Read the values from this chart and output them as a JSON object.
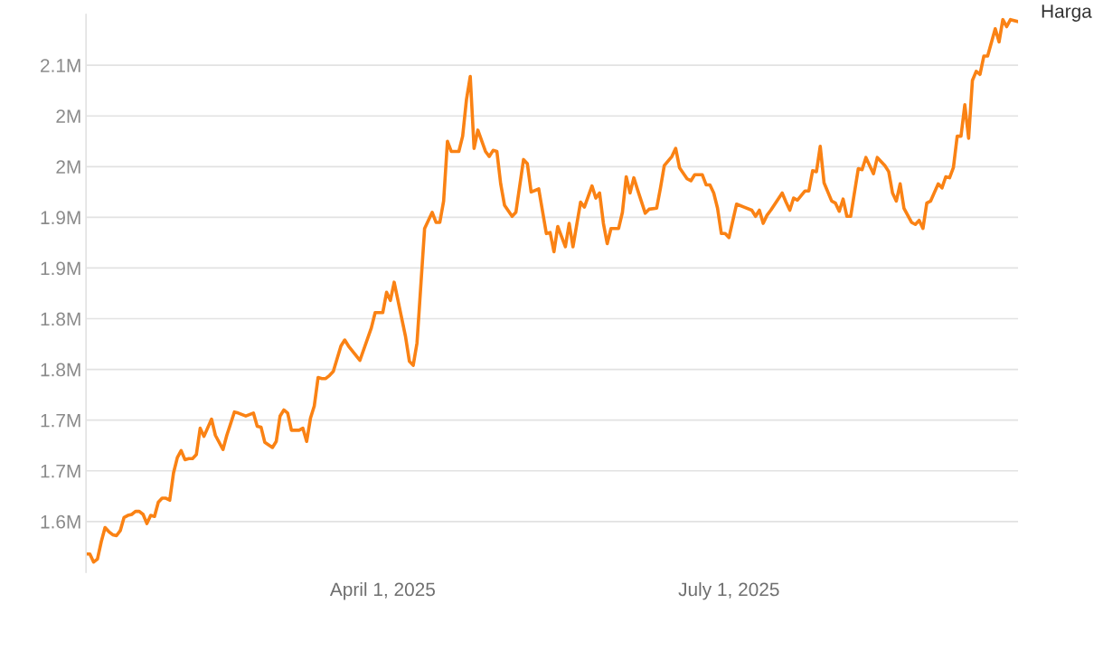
{
  "chart_data": {
    "type": "line",
    "x": [
      "2025-01-13",
      "2025-01-14",
      "2025-01-15",
      "2025-01-16",
      "2025-01-17",
      "2025-01-18",
      "2025-01-19",
      "2025-01-20",
      "2025-01-21",
      "2025-01-22",
      "2025-01-23",
      "2025-01-24",
      "2025-01-25",
      "2025-01-26",
      "2025-01-27",
      "2025-01-28",
      "2025-01-29",
      "2025-01-30",
      "2025-01-31",
      "2025-02-01",
      "2025-02-02",
      "2025-02-03",
      "2025-02-04",
      "2025-02-05",
      "2025-02-06",
      "2025-02-07",
      "2025-02-08",
      "2025-02-09",
      "2025-02-10",
      "2025-02-11",
      "2025-02-12",
      "2025-02-13",
      "2025-02-15",
      "2025-02-16",
      "2025-02-18",
      "2025-02-19",
      "2025-02-21",
      "2025-02-22",
      "2025-02-24",
      "2025-02-26",
      "2025-02-27",
      "2025-02-28",
      "2025-03-01",
      "2025-03-03",
      "2025-03-04",
      "2025-03-05",
      "2025-03-06",
      "2025-03-07",
      "2025-03-08",
      "2025-03-10",
      "2025-03-11",
      "2025-03-12",
      "2025-03-13",
      "2025-03-14",
      "2025-03-15",
      "2025-03-16",
      "2025-03-17",
      "2025-03-18",
      "2025-03-19",
      "2025-03-21",
      "2025-03-22",
      "2025-03-23",
      "2025-03-26",
      "2025-03-29",
      "2025-03-30",
      "2025-04-01",
      "2025-04-02",
      "2025-04-03",
      "2025-04-04",
      "2025-04-07",
      "2025-04-08",
      "2025-04-09",
      "2025-04-10",
      "2025-04-12",
      "2025-04-14",
      "2025-04-15",
      "2025-04-16",
      "2025-04-17",
      "2025-04-18",
      "2025-04-19",
      "2025-04-21",
      "2025-04-22",
      "2025-04-23",
      "2025-04-24",
      "2025-04-25",
      "2025-04-26",
      "2025-04-28",
      "2025-04-29",
      "2025-04-30",
      "2025-05-01",
      "2025-05-02",
      "2025-05-03",
      "2025-05-05",
      "2025-05-06",
      "2025-05-08",
      "2025-05-09",
      "2025-05-10",
      "2025-05-12",
      "2025-05-14",
      "2025-05-15",
      "2025-05-16",
      "2025-05-17",
      "2025-05-19",
      "2025-05-20",
      "2025-05-21",
      "2025-05-23",
      "2025-05-24",
      "2025-05-26",
      "2025-05-27",
      "2025-05-28",
      "2025-05-29",
      "2025-05-30",
      "2025-05-31",
      "2025-06-02",
      "2025-06-03",
      "2025-06-04",
      "2025-06-05",
      "2025-06-06",
      "2025-06-07",
      "2025-06-09",
      "2025-06-10",
      "2025-06-12",
      "2025-06-13",
      "2025-06-14",
      "2025-06-16",
      "2025-06-17",
      "2025-06-18",
      "2025-06-20",
      "2025-06-21",
      "2025-06-22",
      "2025-06-24",
      "2025-06-25",
      "2025-06-26",
      "2025-06-27",
      "2025-06-28",
      "2025-06-29",
      "2025-06-30",
      "2025-07-01",
      "2025-07-03",
      "2025-07-05",
      "2025-07-07",
      "2025-07-08",
      "2025-07-09",
      "2025-07-10",
      "2025-07-11",
      "2025-07-12",
      "2025-07-15",
      "2025-07-16",
      "2025-07-17",
      "2025-07-18",
      "2025-07-19",
      "2025-07-21",
      "2025-07-22",
      "2025-07-23",
      "2025-07-24",
      "2025-07-25",
      "2025-07-26",
      "2025-07-28",
      "2025-07-29",
      "2025-07-30",
      "2025-07-31",
      "2025-08-01",
      "2025-08-02",
      "2025-08-04",
      "2025-08-05",
      "2025-08-06",
      "2025-08-08",
      "2025-08-09",
      "2025-08-11",
      "2025-08-12",
      "2025-08-13",
      "2025-08-14",
      "2025-08-15",
      "2025-08-16",
      "2025-08-18",
      "2025-08-19",
      "2025-08-20",
      "2025-08-21",
      "2025-08-22",
      "2025-08-23",
      "2025-08-25",
      "2025-08-26",
      "2025-08-27",
      "2025-08-28",
      "2025-08-29",
      "2025-08-30",
      "2025-08-31",
      "2025-09-01",
      "2025-09-02",
      "2025-09-03",
      "2025-09-04",
      "2025-09-05",
      "2025-09-06",
      "2025-09-07",
      "2025-09-09",
      "2025-09-10",
      "2025-09-11",
      "2025-09-12",
      "2025-09-13",
      "2025-09-15"
    ],
    "series": [
      {
        "name": "Harga",
        "color": "#fa8214",
        "values": [
          1568000,
          1568000,
          1560000,
          1563000,
          1580000,
          1594000,
          1590000,
          1587000,
          1586000,
          1591000,
          1604000,
          1606000,
          1607000,
          1610000,
          1610000,
          1607000,
          1598000,
          1606000,
          1605000,
          1619000,
          1623000,
          1623000,
          1621000,
          1648000,
          1663000,
          1670000,
          1661000,
          1662000,
          1662000,
          1666000,
          1692000,
          1684000,
          1701000,
          1685000,
          1671000,
          1685000,
          1708000,
          1707000,
          1704000,
          1707000,
          1694000,
          1693000,
          1678000,
          1673000,
          1679000,
          1704000,
          1710000,
          1707000,
          1690000,
          1690000,
          1692000,
          1679000,
          1702000,
          1714000,
          1742000,
          1741000,
          1741000,
          1744000,
          1748000,
          1773000,
          1779000,
          1773000,
          1759000,
          1791000,
          1806000,
          1806000,
          1826000,
          1818000,
          1836000,
          1782000,
          1758000,
          1754000,
          1776000,
          1889000,
          1905000,
          1895000,
          1895000,
          1916000,
          1975000,
          1965000,
          1965000,
          1980000,
          2016000,
          2039000,
          1968000,
          1986000,
          1965000,
          1960000,
          1966000,
          1965000,
          1933000,
          1912000,
          1901000,
          1905000,
          1957000,
          1953000,
          1925000,
          1928000,
          1884000,
          1885000,
          1866000,
          1891000,
          1871000,
          1894000,
          1871000,
          1915000,
          1910000,
          1931000,
          1919000,
          1924000,
          1894000,
          1874000,
          1889000,
          1889000,
          1905000,
          1940000,
          1924000,
          1939000,
          1927000,
          1904000,
          1908000,
          1909000,
          1929000,
          1951000,
          1960000,
          1968000,
          1949000,
          1938000,
          1936000,
          1942000,
          1942000,
          1932000,
          1932000,
          1924000,
          1909000,
          1884000,
          1884000,
          1880000,
          1913000,
          1910000,
          1907000,
          1901000,
          1907000,
          1894000,
          1902000,
          1907000,
          1924000,
          1915000,
          1907000,
          1919000,
          1917000,
          1926000,
          1926000,
          1946000,
          1945000,
          1970000,
          1934000,
          1916000,
          1914000,
          1906000,
          1918000,
          1901000,
          1901000,
          1948000,
          1947000,
          1959000,
          1943000,
          1959000,
          1951000,
          1945000,
          1924000,
          1916000,
          1933000,
          1909000,
          1895000,
          1893000,
          1897000,
          1889000,
          1914000,
          1916000,
          1933000,
          1929000,
          1940000,
          1939000,
          1949000,
          1980000,
          1980000,
          2011000,
          1978000,
          2035000,
          2044000,
          2041000,
          2059000,
          2059000,
          2086000,
          2073000,
          2095000,
          2088000,
          2095000,
          2093000
        ]
      }
    ],
    "xlim": [
      "2025-01-13",
      "2025-09-15"
    ],
    "xticks": [
      {
        "value": "2025-04-01",
        "label": "April 1, 2025"
      },
      {
        "value": "2025-07-01",
        "label": "July 1, 2025"
      }
    ],
    "ylim": [
      1550000,
      2100000
    ],
    "yticks": [
      {
        "value": 1600000,
        "label": "1.6M"
      },
      {
        "value": 1650000,
        "label": "1.7M"
      },
      {
        "value": 1700000,
        "label": "1.7M"
      },
      {
        "value": 1750000,
        "label": "1.8M"
      },
      {
        "value": 1800000,
        "label": "1.8M"
      },
      {
        "value": 1850000,
        "label": "1.9M"
      },
      {
        "value": 1900000,
        "label": "1.9M"
      },
      {
        "value": 1950000,
        "label": "2M"
      },
      {
        "value": 2000000,
        "label": "2M"
      },
      {
        "value": 2050000,
        "label": "2.1M"
      }
    ],
    "grid": "y",
    "legend": false,
    "marker": "none",
    "line_style": "solid"
  }
}
